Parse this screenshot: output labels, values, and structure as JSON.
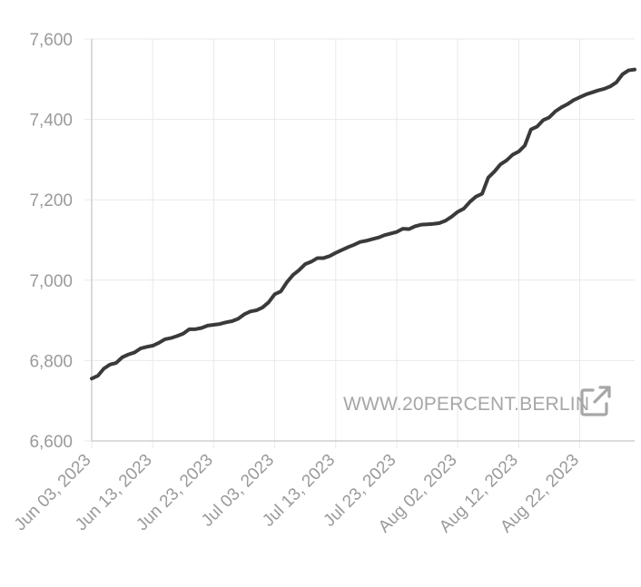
{
  "chart_data": {
    "type": "line",
    "title": "",
    "xlabel": "",
    "ylabel": "",
    "x_range": [
      "2023-06-03",
      "2023-08-31"
    ],
    "ylim": [
      6600,
      7600
    ],
    "grid": true,
    "legend": "none",
    "y_ticks": [
      6600,
      6800,
      7000,
      7200,
      7400,
      7600
    ],
    "y_tick_labels": [
      "6,600",
      "6,800",
      "7,000",
      "7,200",
      "7,400",
      "7,600"
    ],
    "x_ticks": [
      "2023-06-03",
      "2023-06-13",
      "2023-06-23",
      "2023-07-03",
      "2023-07-13",
      "2023-07-23",
      "2023-08-02",
      "2023-08-12",
      "2023-08-22"
    ],
    "x_tick_labels": [
      "Jun 03, 2023",
      "Jun 13, 2023",
      "Jun 23, 2023",
      "Jul 03, 2023",
      "Jul 13, 2023",
      "Jul 23, 2023",
      "Aug 02, 2023",
      "Aug 12, 2023",
      "Aug 22, 2023"
    ],
    "series": [
      {
        "color": "#3a3a3a",
        "x": [
          "2023-06-03",
          "2023-06-04",
          "2023-06-05",
          "2023-06-06",
          "2023-06-07",
          "2023-06-08",
          "2023-06-09",
          "2023-06-10",
          "2023-06-11",
          "2023-06-12",
          "2023-06-13",
          "2023-06-14",
          "2023-06-15",
          "2023-06-16",
          "2023-06-17",
          "2023-06-18",
          "2023-06-19",
          "2023-06-20",
          "2023-06-21",
          "2023-06-22",
          "2023-06-23",
          "2023-06-24",
          "2023-06-25",
          "2023-06-26",
          "2023-06-27",
          "2023-06-28",
          "2023-06-29",
          "2023-06-30",
          "2023-07-01",
          "2023-07-02",
          "2023-07-03",
          "2023-07-04",
          "2023-07-05",
          "2023-07-06",
          "2023-07-07",
          "2023-07-08",
          "2023-07-09",
          "2023-07-10",
          "2023-07-11",
          "2023-07-12",
          "2023-07-13",
          "2023-07-14",
          "2023-07-15",
          "2023-07-16",
          "2023-07-17",
          "2023-07-18",
          "2023-07-19",
          "2023-07-20",
          "2023-07-21",
          "2023-07-22",
          "2023-07-23",
          "2023-07-24",
          "2023-07-25",
          "2023-07-26",
          "2023-07-27",
          "2023-07-28",
          "2023-07-29",
          "2023-07-30",
          "2023-07-31",
          "2023-08-01",
          "2023-08-02",
          "2023-08-03",
          "2023-08-04",
          "2023-08-05",
          "2023-08-06",
          "2023-08-07",
          "2023-08-08",
          "2023-08-09",
          "2023-08-10",
          "2023-08-11",
          "2023-08-12",
          "2023-08-13",
          "2023-08-14",
          "2023-08-15",
          "2023-08-16",
          "2023-08-17",
          "2023-08-18",
          "2023-08-19",
          "2023-08-20",
          "2023-08-21",
          "2023-08-22",
          "2023-08-23",
          "2023-08-24",
          "2023-08-25",
          "2023-08-26",
          "2023-08-27",
          "2023-08-28",
          "2023-08-29",
          "2023-08-30",
          "2023-08-31"
        ],
        "y": [
          6755,
          6762,
          6780,
          6790,
          6794,
          6808,
          6815,
          6820,
          6830,
          6834,
          6837,
          6844,
          6853,
          6856,
          6861,
          6867,
          6878,
          6878,
          6881,
          6887,
          6889,
          6891,
          6895,
          6898,
          6904,
          6915,
          6922,
          6925,
          6932,
          6945,
          6965,
          6972,
          6995,
          7013,
          7025,
          7040,
          7046,
          7055,
          7055,
          7060,
          7068,
          7075,
          7082,
          7088,
          7095,
          7098,
          7102,
          7106,
          7112,
          7116,
          7120,
          7128,
          7127,
          7134,
          7138,
          7139,
          7140,
          7142,
          7148,
          7158,
          7170,
          7178,
          7195,
          7208,
          7215,
          7255,
          7270,
          7288,
          7298,
          7312,
          7320,
          7335,
          7375,
          7382,
          7398,
          7405,
          7420,
          7430,
          7438,
          7448,
          7455,
          7462,
          7467,
          7472,
          7476,
          7482,
          7492,
          7512,
          7522,
          7524
        ]
      }
    ]
  },
  "watermark": {
    "text": "WWW.20PERCENT.BERLIN",
    "icon": "external-link-icon"
  }
}
